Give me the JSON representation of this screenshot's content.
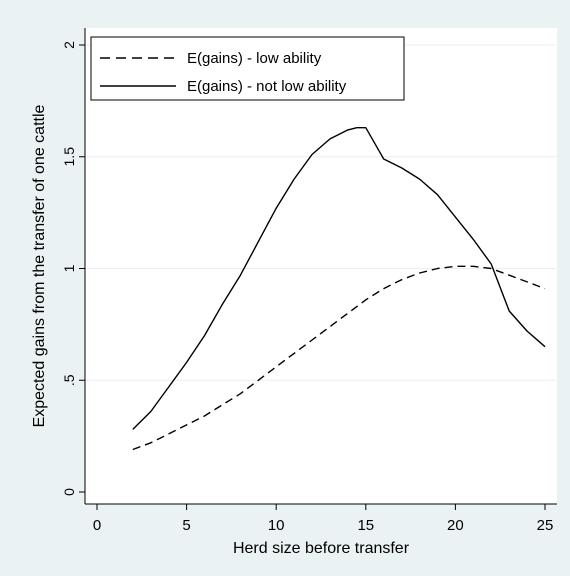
{
  "chart_data": {
    "type": "line",
    "title": "",
    "xlabel": "Herd size before transfer",
    "ylabel": "Expected gains from the transfer of one cattle",
    "xlim": [
      0,
      25
    ],
    "ylim": [
      0,
      2
    ],
    "x_ticks": [
      0,
      5,
      10,
      15,
      20,
      25
    ],
    "y_ticks": [
      0,
      0.5,
      1,
      1.5,
      2
    ],
    "y_tick_labels": [
      "0",
      ".5",
      "1",
      "1.5",
      "2"
    ],
    "grid": "horizontal",
    "legend_position": "top-left",
    "series": [
      {
        "name": "E(gains) - low ability",
        "style": "dashed",
        "x": [
          2,
          3,
          4,
          5,
          6,
          7,
          8,
          9,
          10,
          11,
          12,
          13,
          14,
          15,
          16,
          17,
          18,
          19,
          20,
          21,
          22,
          23,
          24,
          25
        ],
        "y": [
          0.19,
          0.22,
          0.26,
          0.3,
          0.34,
          0.39,
          0.44,
          0.5,
          0.56,
          0.62,
          0.68,
          0.74,
          0.8,
          0.86,
          0.91,
          0.95,
          0.98,
          1.0,
          1.01,
          1.01,
          1.0,
          0.97,
          0.94,
          0.91
        ]
      },
      {
        "name": "E(gains) - not low ability",
        "style": "solid",
        "x": [
          2,
          3,
          4,
          5,
          6,
          7,
          8,
          9,
          10,
          11,
          12,
          13,
          14,
          14.5,
          15,
          16,
          17,
          18,
          19,
          20,
          21,
          22,
          23,
          24,
          25
        ],
        "y": [
          0.28,
          0.36,
          0.47,
          0.58,
          0.7,
          0.84,
          0.97,
          1.12,
          1.27,
          1.4,
          1.51,
          1.58,
          1.62,
          1.63,
          1.63,
          1.49,
          1.45,
          1.4,
          1.33,
          1.23,
          1.13,
          1.02,
          0.81,
          0.72,
          0.65
        ]
      }
    ]
  }
}
